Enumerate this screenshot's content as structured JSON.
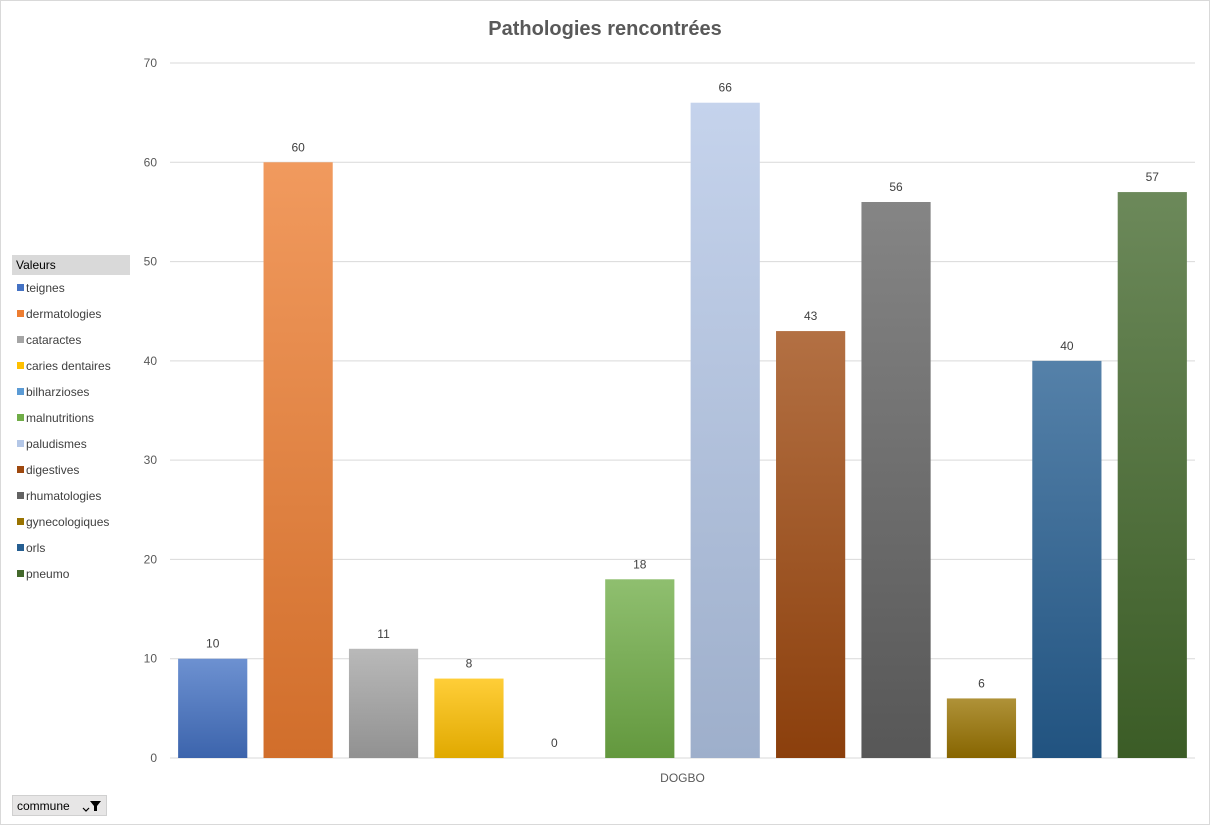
{
  "chart_data": {
    "type": "bar",
    "title": "Pathologies rencontrées",
    "categories": [
      "DOGBO"
    ],
    "series": [
      {
        "name": "teignes",
        "values": [
          10
        ],
        "color": "#4472c4"
      },
      {
        "name": "dermatologies",
        "values": [
          60
        ],
        "color": "#ed7d31"
      },
      {
        "name": "cataractes",
        "values": [
          11
        ],
        "color": "#a5a5a5"
      },
      {
        "name": "caries dentaires",
        "values": [
          8
        ],
        "color": "#ffc000"
      },
      {
        "name": "bilharzioses",
        "values": [
          0
        ],
        "color": "#5b9bd5"
      },
      {
        "name": "malnutritions",
        "values": [
          18
        ],
        "color": "#70ad47"
      },
      {
        "name": "paludismes",
        "values": [
          66
        ],
        "color": "#b4c7e7"
      },
      {
        "name": "digestives",
        "values": [
          43
        ],
        "color": "#9e480e"
      },
      {
        "name": "rhumatologies",
        "values": [
          56
        ],
        "color": "#636363"
      },
      {
        "name": "gynecologiques",
        "values": [
          6
        ],
        "color": "#997300"
      },
      {
        "name": "orls",
        "values": [
          40
        ],
        "color": "#255e91"
      },
      {
        "name": "pneumo",
        "values": [
          57
        ],
        "color": "#43682b"
      }
    ],
    "ylim": [
      0,
      70
    ],
    "yticks": [
      0,
      10,
      20,
      30,
      40,
      50,
      60,
      70
    ],
    "grid": true,
    "legend_position": "left"
  },
  "legend": {
    "header": "Valeurs"
  },
  "filter": {
    "label": "commune"
  }
}
